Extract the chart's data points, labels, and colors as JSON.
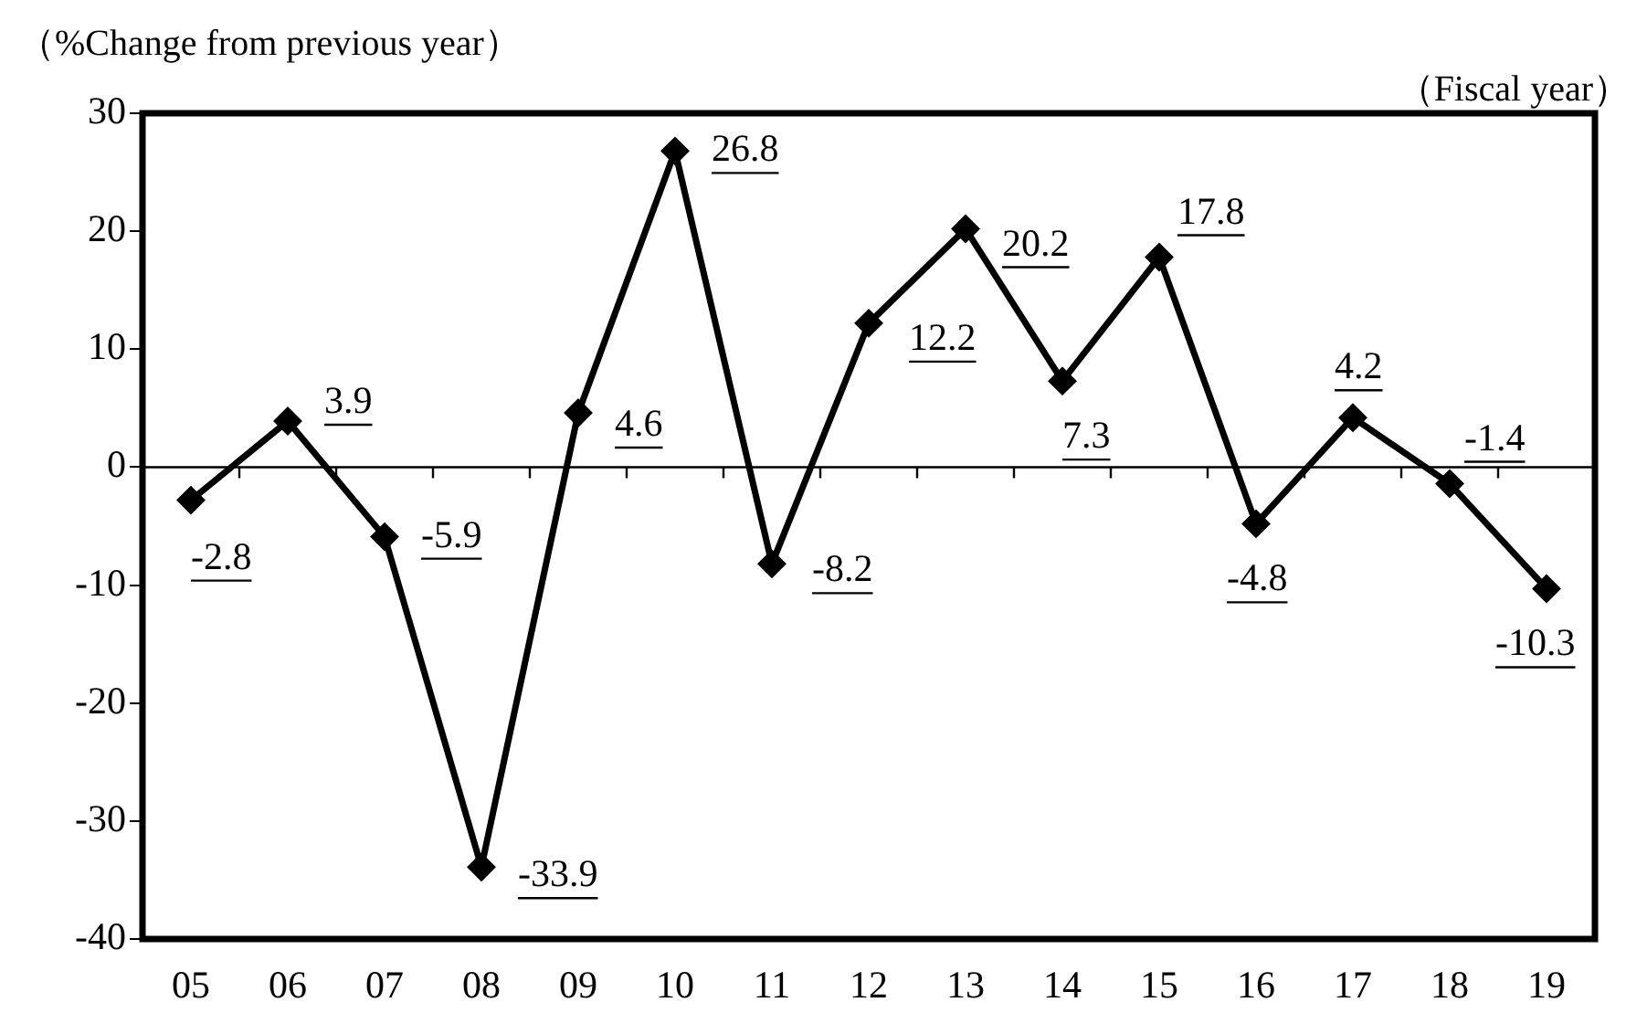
{
  "chart_data": {
    "type": "line",
    "ylabel": "（%Change from previous year）",
    "xlabel": "（Fiscal year）",
    "categories": [
      "05",
      "06",
      "07",
      "08",
      "09",
      "10",
      "11",
      "12",
      "13",
      "14",
      "15",
      "16",
      "17",
      "18",
      "19"
    ],
    "series": [
      {
        "color": "#000000",
        "values": [
          -2.8,
          3.9,
          -5.9,
          -33.9,
          4.6,
          26.8,
          -8.2,
          12.2,
          20.2,
          7.3,
          17.8,
          -4.8,
          4.2,
          -1.4,
          -10.3
        ]
      }
    ],
    "ylim": [
      -40,
      30
    ],
    "yticks": [
      -40,
      -30,
      -20,
      -10,
      0,
      10,
      20,
      30
    ],
    "data_labels": true,
    "marker": "diamond",
    "line_style": "solid",
    "legend": false
  }
}
